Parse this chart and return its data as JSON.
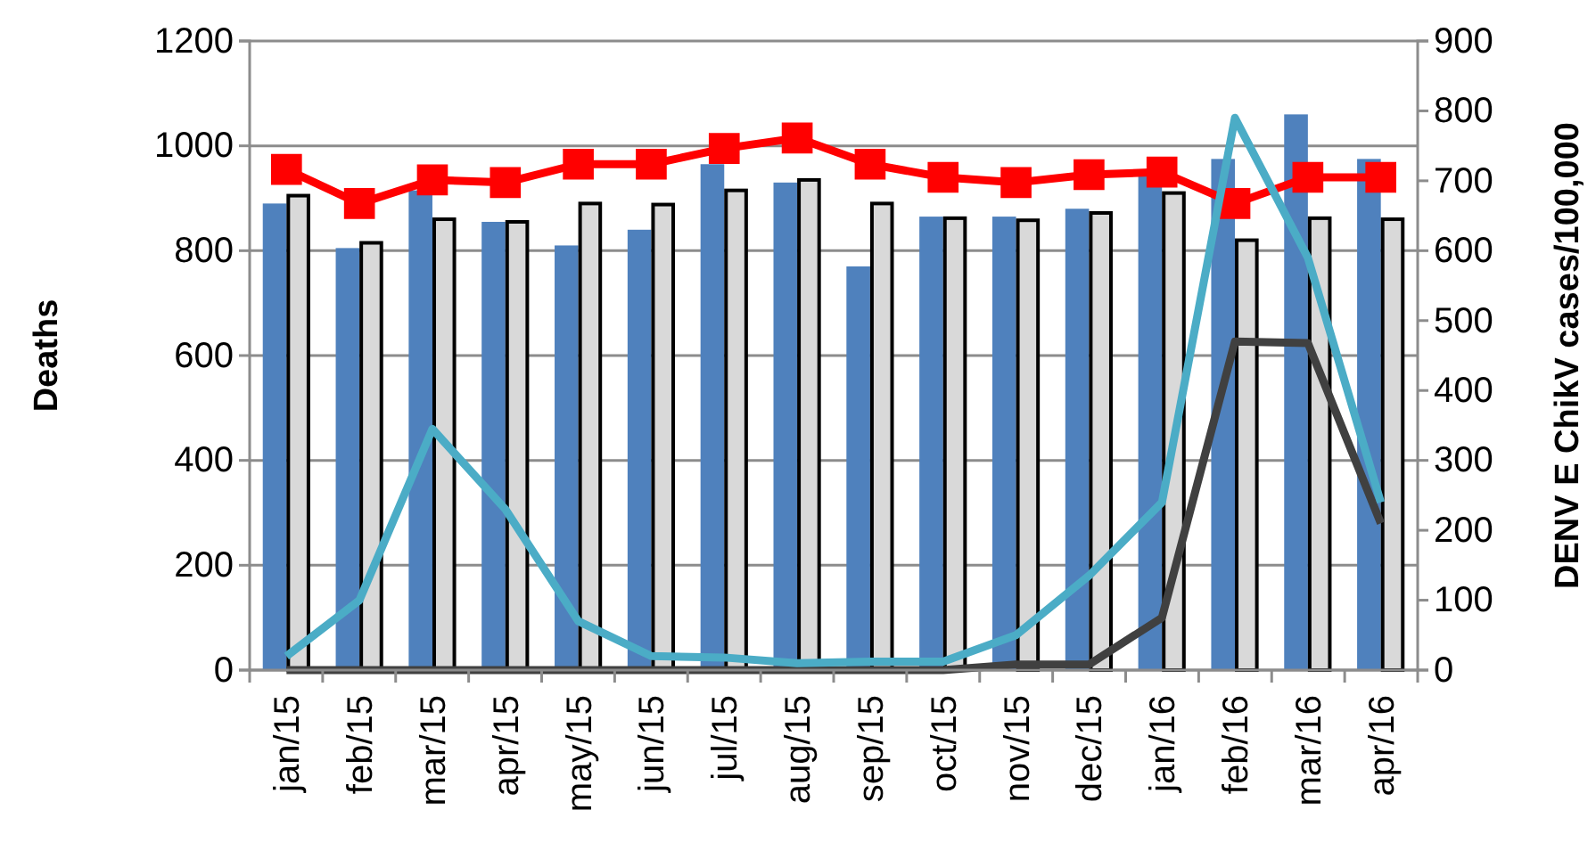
{
  "chart_data": {
    "type": "bar",
    "ylabel": "Deaths",
    "y2label": "DENV E ChikV cases/100,000",
    "categories": [
      "jan/15",
      "feb/15",
      "mar/15",
      "apr/15",
      "may/15",
      "jun/15",
      "jul/15",
      "aug/15",
      "sep/15",
      "oct/15",
      "nov/15",
      "dec/15",
      "jan/16",
      "feb/16",
      "mar/16",
      "apr/16"
    ],
    "ylim": [
      0,
      1200
    ],
    "yticks": [
      0,
      200,
      400,
      600,
      800,
      1000,
      1200
    ],
    "y2lim": [
      0,
      900
    ],
    "y2ticks": [
      0,
      100,
      200,
      300,
      400,
      500,
      600,
      700,
      800,
      900
    ],
    "grid": "y",
    "series": [
      {
        "color": "#4f81bd",
        "values": [
          890,
          805,
          915,
          855,
          810,
          840,
          965,
          930,
          770,
          865,
          865,
          880,
          945,
          975,
          1060,
          975
        ]
      },
      {
        "color": "#d9d9d9",
        "values": [
          905,
          815,
          860,
          855,
          890,
          888,
          915,
          935,
          890,
          862,
          858,
          872,
          910,
          820,
          862,
          860
        ]
      },
      {
        "type": "line",
        "color": "#ff0000",
        "marker": "square",
        "values": [
          955,
          890,
          935,
          930,
          965,
          965,
          995,
          1015,
          965,
          940,
          930,
          945,
          950,
          890,
          940,
          940
        ]
      },
      {
        "type": "line",
        "color": "#404040",
        "axis": "y2",
        "marker": "none",
        "values": [
          0,
          0,
          0,
          0,
          0,
          0,
          0,
          0,
          0,
          0,
          8,
          8,
          75,
          470,
          468,
          210
        ]
      },
      {
        "type": "line",
        "color": "#4bacc6",
        "axis": "y2",
        "marker": "none",
        "values": [
          20,
          100,
          345,
          230,
          70,
          20,
          18,
          10,
          12,
          12,
          50,
          135,
          240,
          790,
          590,
          240
        ]
      }
    ]
  }
}
